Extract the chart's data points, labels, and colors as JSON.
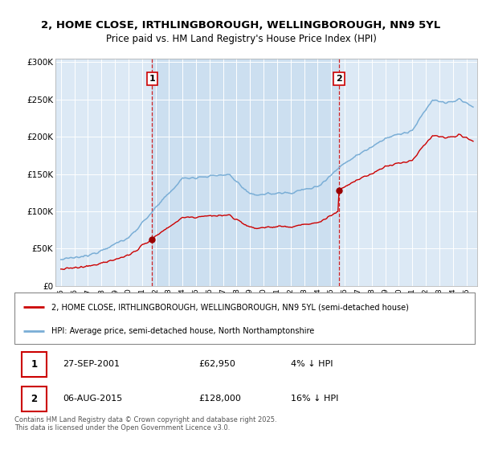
{
  "title_line1": "2, HOME CLOSE, IRTHLINGBOROUGH, WELLINGBOROUGH, NN9 5YL",
  "title_line2": "Price paid vs. HM Land Registry's House Price Index (HPI)",
  "background_color": "#dce9f5",
  "hpi_color": "#7aaed6",
  "price_color": "#cc0000",
  "vline_color": "#cc0000",
  "shade_color": "#ccdff0",
  "purchase1_date": "27-SEP-2001",
  "purchase1_price": "£62,950",
  "purchase1_note": "4% ↓ HPI",
  "purchase2_date": "06-AUG-2015",
  "purchase2_price": "£128,000",
  "purchase2_note": "16% ↓ HPI",
  "legend_line1": "2, HOME CLOSE, IRTHLINGBOROUGH, WELLINGBOROUGH, NN9 5YL (semi-detached house)",
  "legend_line2": "HPI: Average price, semi-detached house, North Northamptonshire",
  "footer": "Contains HM Land Registry data © Crown copyright and database right 2025.\nThis data is licensed under the Open Government Licence v3.0.",
  "yticks": [
    0,
    50000,
    100000,
    150000,
    200000,
    250000,
    300000
  ],
  "ytick_labels": [
    "£0",
    "£50K",
    "£100K",
    "£150K",
    "£200K",
    "£250K",
    "£300K"
  ],
  "purchase1_year": 2001.75,
  "purchase2_year": 2015.58,
  "xlim_start": 1994.6,
  "xlim_end": 2025.8
}
